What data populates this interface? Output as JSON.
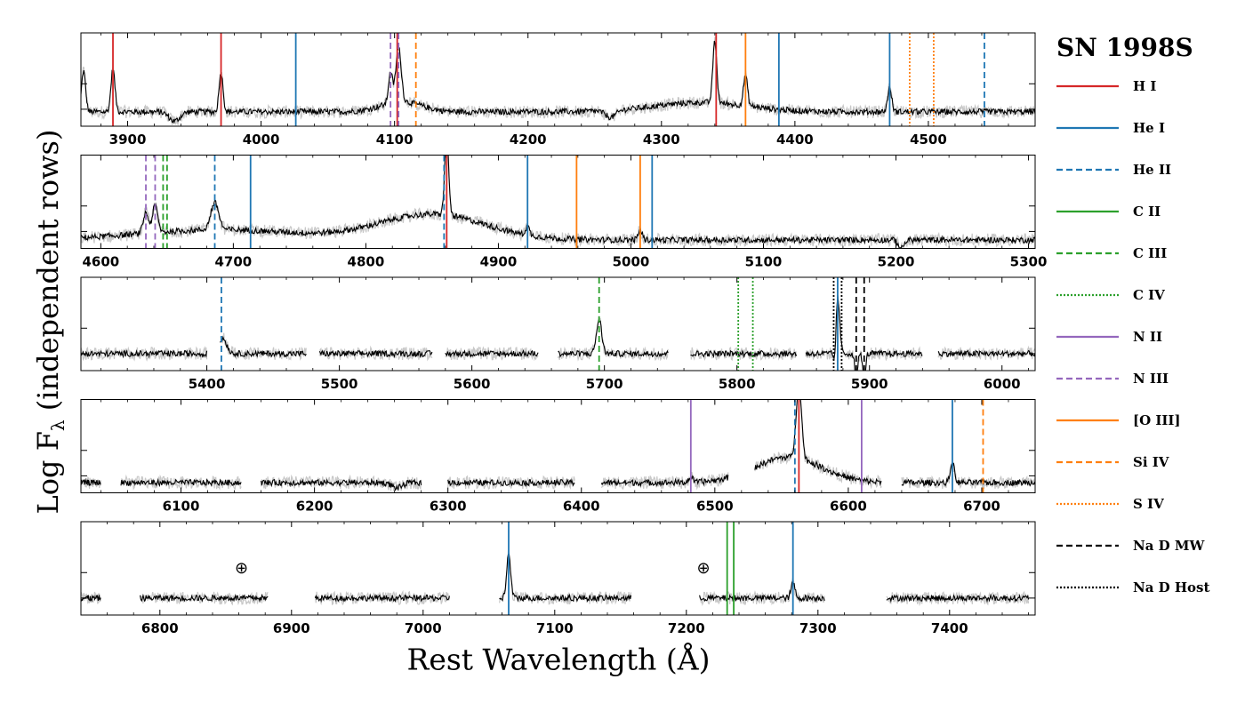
{
  "chart_data": {
    "type": "line",
    "title": "SN 1998S",
    "xlabel": "Rest Wavelength (Å)",
    "ylabel": "Log F",
    "ylabel_subscript": "λ",
    "ylabel_suffix": " (independent rows)",
    "grid": false,
    "legend_placement": "right",
    "species": [
      {
        "name": "H I",
        "color": "#d62728",
        "style": "solid"
      },
      {
        "name": "He I",
        "color": "#1f77b4",
        "style": "solid"
      },
      {
        "name": "He II",
        "color": "#1f77b4",
        "style": "dashed"
      },
      {
        "name": "C II",
        "color": "#2ca02c",
        "style": "solid"
      },
      {
        "name": "C III",
        "color": "#2ca02c",
        "style": "dashed"
      },
      {
        "name": "C IV",
        "color": "#2ca02c",
        "style": "dotted"
      },
      {
        "name": "N II",
        "color": "#9467bd",
        "style": "solid"
      },
      {
        "name": "N III",
        "color": "#9467bd",
        "style": "dashed"
      },
      {
        "name": "[O III]",
        "color": "#ff7f0e",
        "style": "solid"
      },
      {
        "name": "Si IV",
        "color": "#ff7f0e",
        "style": "dashed"
      },
      {
        "name": "S IV",
        "color": "#ff7f0e",
        "style": "dotted"
      },
      {
        "name": "Na D MW",
        "color": "#000000",
        "style": "dashed"
      },
      {
        "name": "Na D Host",
        "color": "#000000",
        "style": "dotted"
      }
    ],
    "rows": [
      {
        "xlim": [
          3865,
          4580
        ],
        "xticks": [
          3900,
          4000,
          4100,
          4200,
          4300,
          4400,
          4500
        ],
        "continuum": 0.85,
        "segments": [
          [
            3865,
            4580
          ]
        ],
        "features": [
          {
            "x": 3867,
            "amp": 2.4,
            "width": 1.5
          },
          {
            "x": 3889,
            "amp": 2.5,
            "width": 1.5
          },
          {
            "x": 3970,
            "amp": 2.3,
            "width": 1.5
          },
          {
            "x": 4097,
            "amp": 1.8,
            "width": 1.5
          },
          {
            "x": 4103,
            "amp": 3.2,
            "width": 2
          },
          {
            "x": 4105,
            "amp": 0.6,
            "width": 15
          },
          {
            "x": 4340,
            "amp": 3.6,
            "width": 1.5
          },
          {
            "x": 4330,
            "amp": 0.55,
            "width": 35
          },
          {
            "x": 4363,
            "amp": 1.8,
            "width": 1.5
          },
          {
            "x": 4471,
            "amp": 1.4,
            "width": 1.5
          },
          {
            "x": 3935,
            "amp": -0.55,
            "width": 4
          },
          {
            "x": 4262,
            "amp": -0.4,
            "width": 4
          }
        ],
        "lines": [
          {
            "x": 3889,
            "species": "H I"
          },
          {
            "x": 3970,
            "species": "H I"
          },
          {
            "x": 4102,
            "species": "H I"
          },
          {
            "x": 4341,
            "species": "H I"
          },
          {
            "x": 4026,
            "species": "He I"
          },
          {
            "x": 4388,
            "species": "He I"
          },
          {
            "x": 4471,
            "species": "He I"
          },
          {
            "x": 4542,
            "species": "He II"
          },
          {
            "x": 4097,
            "species": "N III"
          },
          {
            "x": 4103,
            "species": "N III"
          },
          {
            "x": 4116,
            "species": "Si IV"
          },
          {
            "x": 4363,
            "species": "[O III]"
          },
          {
            "x": 4486,
            "species": "S IV"
          },
          {
            "x": 4504,
            "species": "S IV"
          }
        ],
        "annotations": []
      },
      {
        "xlim": [
          4585,
          5305
        ],
        "xticks": [
          4600,
          4700,
          4800,
          4900,
          5000,
          5100,
          5200,
          5300
        ],
        "continuum": 0.5,
        "segments": [
          [
            4585,
            5305
          ]
        ],
        "features": [
          {
            "x": 4634,
            "amp": 1.2,
            "width": 2
          },
          {
            "x": 4641,
            "amp": 1.6,
            "width": 2
          },
          {
            "x": 4686,
            "amp": 1.6,
            "width": 3
          },
          {
            "x": 4861,
            "amp": 4.8,
            "width": 1.5
          },
          {
            "x": 4850,
            "amp": 1.5,
            "width": 40
          },
          {
            "x": 4690,
            "amp": 0.6,
            "width": 60
          },
          {
            "x": 4922,
            "amp": 0.5,
            "width": 1.5
          },
          {
            "x": 5007,
            "amp": 0.6,
            "width": 1.5
          },
          {
            "x": 5204,
            "amp": -0.5,
            "width": 2
          }
        ],
        "lines": [
          {
            "x": 4861,
            "species": "H I"
          },
          {
            "x": 4713,
            "species": "He I"
          },
          {
            "x": 4922,
            "species": "He I"
          },
          {
            "x": 5016,
            "species": "He I"
          },
          {
            "x": 4686,
            "species": "He II"
          },
          {
            "x": 4859,
            "species": "He II"
          },
          {
            "x": 4647,
            "species": "C III"
          },
          {
            "x": 4650,
            "species": "C III"
          },
          {
            "x": 4634,
            "species": "N III"
          },
          {
            "x": 4641,
            "species": "N III"
          },
          {
            "x": 4959,
            "species": "[O III]"
          },
          {
            "x": 5007,
            "species": "[O III]"
          }
        ],
        "annotations": []
      },
      {
        "xlim": [
          5305,
          6025
        ],
        "xticks": [
          5400,
          5500,
          5600,
          5700,
          5800,
          5900,
          6000
        ],
        "continuum": 1.0,
        "segments": [
          [
            5305,
            5400
          ],
          [
            5410,
            5475
          ],
          [
            5485,
            5570
          ],
          [
            5580,
            5650
          ],
          [
            5665,
            5748
          ],
          [
            5765,
            5845
          ],
          [
            5852,
            5940
          ],
          [
            5952,
            6025
          ]
        ],
        "features": [
          {
            "x": 5412,
            "amp": 0.9,
            "width": 3
          },
          {
            "x": 5696,
            "amp": 2.0,
            "width": 2
          },
          {
            "x": 5876,
            "amp": 3.4,
            "width": 1.5
          },
          {
            "x": 5874,
            "amp": -1.2,
            "width": 1
          },
          {
            "x": 5890,
            "amp": -1.6,
            "width": 1
          },
          {
            "x": 5896,
            "amp": -1.6,
            "width": 1
          }
        ],
        "lines": [
          {
            "x": 5411,
            "species": "He II"
          },
          {
            "x": 5876,
            "species": "He I"
          },
          {
            "x": 5696,
            "species": "C III"
          },
          {
            "x": 5801,
            "species": "C IV"
          },
          {
            "x": 5812,
            "species": "C IV"
          },
          {
            "x": 5890,
            "species": "Na D MW"
          },
          {
            "x": 5896,
            "species": "Na D MW"
          },
          {
            "x": 5873,
            "species": "Na D Host"
          },
          {
            "x": 5879,
            "species": "Na D Host"
          }
        ],
        "annotations": []
      },
      {
        "xlim": [
          6025,
          6740
        ],
        "xticks": [
          6100,
          6200,
          6300,
          6400,
          6500,
          6600,
          6700
        ],
        "continuum": 0.6,
        "segments": [
          [
            6025,
            6040
          ],
          [
            6055,
            6145
          ],
          [
            6160,
            6280
          ],
          [
            6300,
            6395
          ],
          [
            6415,
            6510
          ],
          [
            6530,
            6625
          ],
          [
            6640,
            6740
          ]
        ],
        "features": [
          {
            "x": 6563,
            "amp": 4.4,
            "width": 2
          },
          {
            "x": 6555,
            "amp": 1.5,
            "width": 25
          },
          {
            "x": 6678,
            "amp": 1.2,
            "width": 1.5
          },
          {
            "x": 6482,
            "amp": 0.3,
            "width": 1.5
          },
          {
            "x": 6262,
            "amp": -0.3,
            "width": 4
          }
        ],
        "lines": [
          {
            "x": 6563,
            "species": "H I"
          },
          {
            "x": 6678,
            "species": "He I"
          },
          {
            "x": 6560,
            "species": "He II"
          },
          {
            "x": 6482,
            "species": "N II"
          },
          {
            "x": 6610,
            "species": "N II"
          },
          {
            "x": 6701,
            "species": "Si IV"
          }
        ],
        "annotations": []
      },
      {
        "xlim": [
          6740,
          7465
        ],
        "xticks": [
          6800,
          6900,
          7000,
          7100,
          7200,
          7300,
          7400
        ],
        "continuum": 1.0,
        "segments": [
          [
            6740,
            6755
          ],
          [
            6785,
            6845
          ],
          [
            6845,
            6882
          ],
          [
            6918,
            7020
          ],
          [
            7058,
            7158
          ],
          [
            7210,
            7305
          ],
          [
            7352,
            7460
          ]
        ],
        "features": [
          {
            "x": 7065,
            "amp": 2.6,
            "width": 1.5
          },
          {
            "x": 7281,
            "amp": 0.9,
            "width": 1.5
          }
        ],
        "lines": [
          {
            "x": 7065,
            "species": "He I"
          },
          {
            "x": 7281,
            "species": "He I"
          },
          {
            "x": 7231,
            "species": "C II"
          },
          {
            "x": 7236,
            "species": "C II"
          }
        ],
        "annotations": [
          {
            "x": 6862,
            "text": "⊕"
          },
          {
            "x": 7213,
            "text": "⊕"
          }
        ]
      }
    ]
  }
}
